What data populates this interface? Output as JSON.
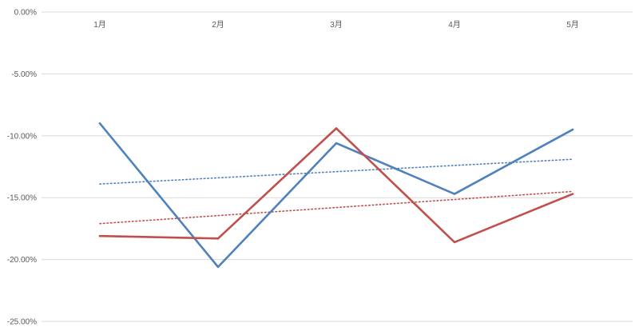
{
  "chart_data": {
    "type": "line",
    "categories": [
      "1月",
      "2月",
      "3月",
      "4月",
      "5月"
    ],
    "y_ticks": [
      "0.00%",
      "-5.00%",
      "-10.00%",
      "-15.00%",
      "-20.00%",
      "-25.00%"
    ],
    "ylim": [
      -0.25,
      0
    ],
    "grid": true,
    "series": [
      {
        "color": "#4f81bd",
        "values": [
          -0.09,
          -0.206,
          -0.106,
          -0.147,
          -0.095
        ]
      },
      {
        "color": "#c0504d",
        "values": [
          -0.181,
          -0.183,
          -0.094,
          -0.186,
          -0.147
        ]
      }
    ],
    "trendlines": [
      {
        "color": "#4f81bd",
        "style": "dotted",
        "start": -0.139,
        "end": -0.119
      },
      {
        "color": "#c0504d",
        "style": "dotted",
        "start": -0.171,
        "end": -0.145
      }
    ]
  }
}
